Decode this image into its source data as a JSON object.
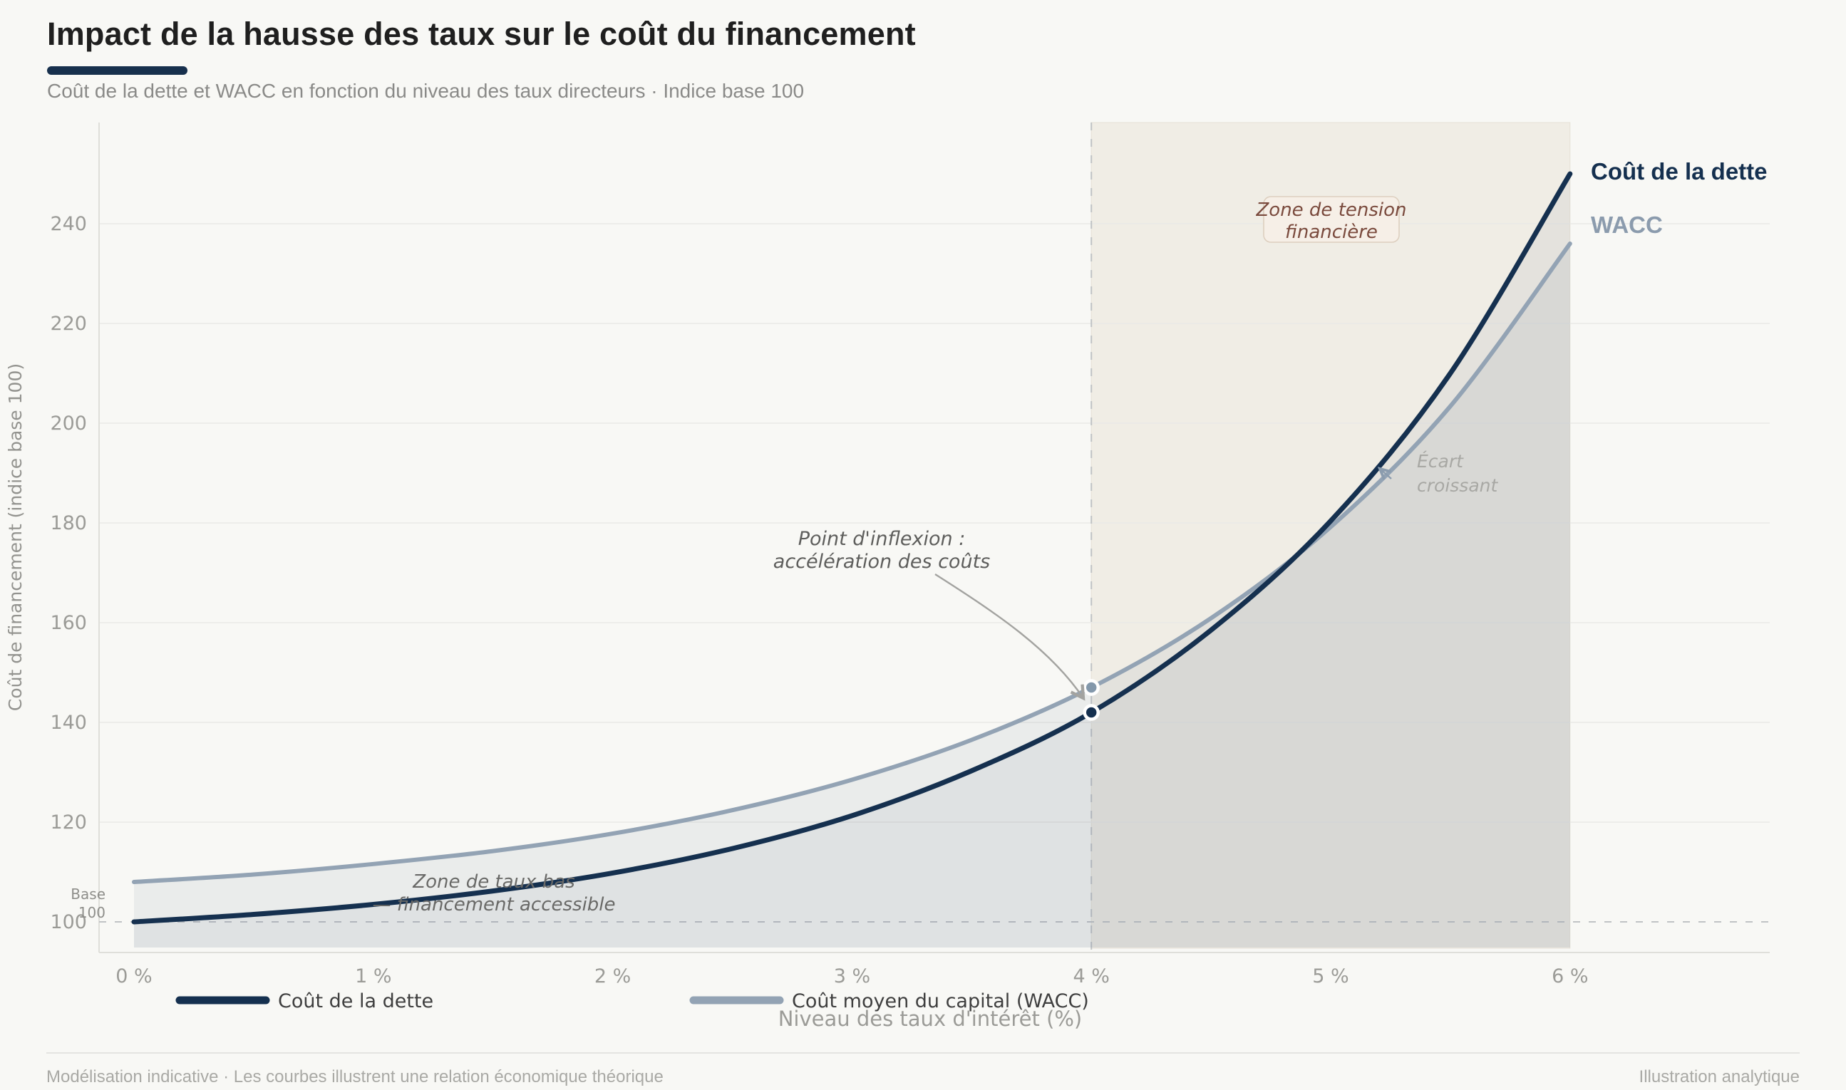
{
  "header": {
    "title": "Impact de la hausse des taux sur le coût du financement",
    "subtitle": "Coût de la dette et WACC en fonction du niveau des taux directeurs · Indice base 100"
  },
  "footer": {
    "left": "Modélisation indicative · Les courbes illustrent une relation économique théorique",
    "right": "Illustration analytique"
  },
  "chart_data": {
    "type": "line",
    "title": "Impact de la hausse des taux sur le coût du financement",
    "xlabel": "Niveau des taux d'intérêt (%)",
    "ylabel": "Coût de financement (indice base 100)",
    "x": [
      0,
      0.5,
      1,
      1.5,
      2,
      2.5,
      3,
      3.5,
      4,
      4.5,
      5,
      5.5,
      6
    ],
    "series": [
      {
        "name": "Coût de la dette",
        "color": "#15304f",
        "values": [
          100,
          101.5,
          103.5,
          106.2,
          109.8,
          114.7,
          121.3,
          130.3,
          142,
          158.5,
          180.4,
          210,
          250
        ]
      },
      {
        "name": "Coût moyen du capital (WACC)",
        "color": "#93a3b4",
        "values": [
          108,
          109.5,
          111.6,
          114.2,
          117.7,
          122.4,
          128.5,
          136.5,
          147,
          160.9,
          179.2,
          203.4,
          236
        ]
      }
    ],
    "x_tick_values": [
      0,
      1,
      2,
      3,
      4,
      5,
      6
    ],
    "x_tick_labels": [
      "0 %",
      "1 %",
      "2 %",
      "3 %",
      "4 %",
      "5 %",
      "6 %"
    ],
    "y_ticks": [
      100,
      120,
      140,
      160,
      180,
      200,
      220,
      240
    ],
    "ylim": [
      94,
      260
    ],
    "grid": "horizontal",
    "legend_position": "bottom-center",
    "baseline_value": 100,
    "inflection_x": 4,
    "inflection_points": {
      "debt": 142,
      "wacc": 147
    },
    "tension_zone": {
      "from_x": 4,
      "to_x": 6
    }
  },
  "legend": {
    "debt": "Coût de la dette",
    "wacc": "Coût moyen du capital (WACC)"
  },
  "curve_labels": {
    "debt": "Coût de la dette",
    "wacc": "WACC"
  },
  "annotations": {
    "tension_box": {
      "line1": "Zone de tension",
      "line2": "financière"
    },
    "inflection": {
      "line1": "Point d'inflexion :",
      "line2": "accélération des coûts"
    },
    "low_rate_zone": {
      "line1": "Zone de taux bas",
      "line2": "— financement accessible"
    },
    "gap": {
      "line1": "Écart",
      "line2": "croissant"
    },
    "base": {
      "line1": "Base",
      "line2": "100"
    }
  },
  "colors": {
    "background": "#f8f8f5",
    "accent": "#17304d",
    "debt_curve": "#15304f",
    "wacc_curve": "#93a3b4",
    "tension_zone_fill": "#f0ede5",
    "tension_box_bg": "#f6efe7",
    "tension_box_border": "#ddcfbf",
    "tension_text": "#7a4a3d",
    "gridline": "#e9e9e6",
    "dashed_line": "#c0c3c5",
    "tick_text": "#9b9b97"
  }
}
